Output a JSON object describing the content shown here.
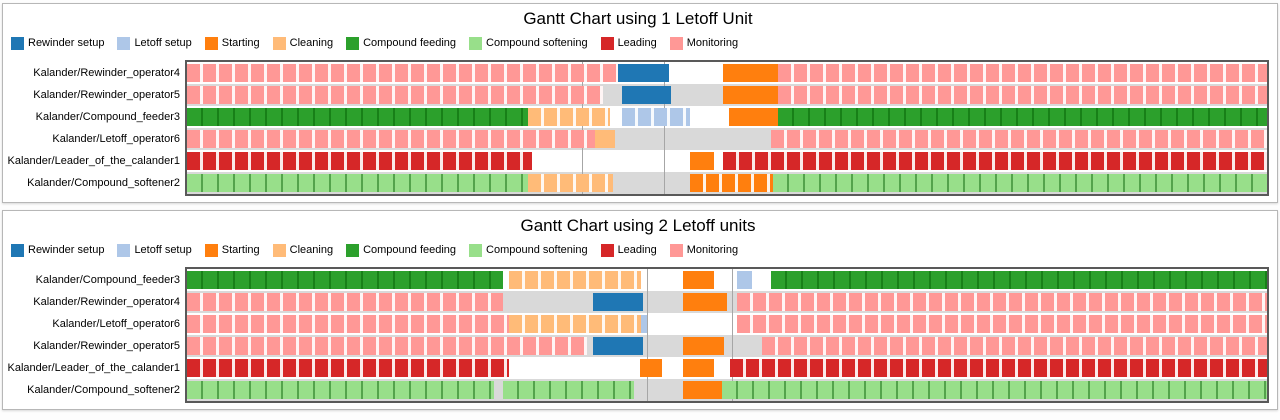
{
  "activity_colors": {
    "Rewinder setup": "#1f77b4",
    "Letoff setup": "#aec7e8",
    "Starting": "#ff7f0e",
    "Cleaning": "#ffbb78",
    "Compound feeding": "#2ca02c",
    "Compound softening": "#98df8a",
    "Leading": "#d62728",
    "Monitoring": "#ff9896"
  },
  "row_colors": {
    "even": "#ffffff",
    "odd": "#d9d9d9"
  },
  "chart_data": [
    {
      "type": "gantt",
      "title": "Gantt Chart using 1 Letoff Unit",
      "legend": [
        "Rewinder setup",
        "Letoff setup",
        "Starting",
        "Cleaning",
        "Compound feeding",
        "Compound softening",
        "Leading",
        "Monitoring"
      ],
      "legend_position": "top-left",
      "xlim": [
        0,
        100
      ],
      "gridlines_x": [
        36.6,
        44.2
      ],
      "rows": [
        {
          "label": "Kalander/Rewinder_operator4",
          "segments": [
            [
              "Monitoring",
              0,
              39.9
            ],
            [
              "Rewinder setup",
              39.9,
              44.6
            ],
            [
              "Starting",
              49.6,
              54.7
            ],
            [
              "Monitoring",
              54.7,
              100
            ]
          ]
        },
        {
          "label": "Kalander/Rewinder_operator5",
          "segments": [
            [
              "Monitoring",
              0,
              38.5
            ],
            [
              "Rewinder setup",
              40.3,
              44.8
            ],
            [
              "Starting",
              49.6,
              54.7
            ],
            [
              "Monitoring",
              54.7,
              100
            ]
          ]
        },
        {
          "label": "Kalander/Compound_feeder3",
          "segments": [
            [
              "Compound feeding",
              0,
              31.6
            ],
            [
              "Cleaning",
              31.6,
              39.2
            ],
            [
              "Letoff setup",
              40.3,
              46.6
            ],
            [
              "Starting",
              50.2,
              54.7
            ],
            [
              "Compound feeding",
              54.7,
              100
            ]
          ]
        },
        {
          "label": "Kalander/Letoff_operator6",
          "segments": [
            [
              "Monitoring",
              0,
              37.8
            ],
            [
              "Cleaning",
              37.8,
              39.6
            ],
            [
              "Monitoring",
              54.1,
              100
            ]
          ]
        },
        {
          "label": "Kalander/Leader_of_the_calander1",
          "segments": [
            [
              "Leading",
              0,
              31.9
            ],
            [
              "Starting",
              46.6,
              48.8
            ],
            [
              "Leading",
              49.6,
              100
            ]
          ]
        },
        {
          "label": "Kalander/Compound_softener2",
          "segments": [
            [
              "Compound softening",
              0,
              31.6
            ],
            [
              "Cleaning",
              31.6,
              39.4
            ],
            [
              "Starting",
              46.6,
              54.3
            ],
            [
              "Compound softening",
              54.3,
              100
            ]
          ]
        }
      ]
    },
    {
      "type": "gantt",
      "title": "Gantt Chart using 2 Letoff units",
      "legend": [
        "Rewinder setup",
        "Letoff setup",
        "Starting",
        "Cleaning",
        "Compound feeding",
        "Compound softening",
        "Leading",
        "Monitoring"
      ],
      "legend_position": "top-left",
      "xlim": [
        0,
        100
      ],
      "gridlines_x": [
        42.6,
        50.5
      ],
      "rows": [
        {
          "label": "Kalander/Compound_feeder3",
          "segments": [
            [
              "Compound feeding",
              0,
              29.3
            ],
            [
              "Cleaning",
              29.8,
              42.0
            ],
            [
              "Starting",
              45.9,
              48.8
            ],
            [
              "Letoff setup",
              50.9,
              52.3
            ],
            [
              "Compound feeding",
              54.1,
              100
            ]
          ]
        },
        {
          "label": "Kalander/Rewinder_operator4",
          "segments": [
            [
              "Monitoring",
              0,
              29.3
            ],
            [
              "Rewinder setup",
              37.6,
              42.2
            ],
            [
              "Starting",
              45.9,
              50.0
            ],
            [
              "Monitoring",
              50.9,
              100
            ]
          ]
        },
        {
          "label": "Kalander/Letoff_operator6",
          "segments": [
            [
              "Monitoring",
              0,
              29.8
            ],
            [
              "Cleaning",
              29.8,
              42.0
            ],
            [
              "Letoff setup",
              42.0,
              42.6
            ],
            [
              "Monitoring",
              50.9,
              100
            ]
          ]
        },
        {
          "label": "Kalander/Rewinder_operator5",
          "segments": [
            [
              "Monitoring",
              0,
              37.0
            ],
            [
              "Rewinder setup",
              37.6,
              42.2
            ],
            [
              "Starting",
              45.9,
              49.7
            ],
            [
              "Monitoring",
              53.2,
              100
            ]
          ]
        },
        {
          "label": "Kalander/Leader_of_the_calander1",
          "segments": [
            [
              "Leading",
              0,
              29.8
            ],
            [
              "Starting",
              41.9,
              44.0
            ],
            [
              "Starting",
              45.9,
              48.8
            ],
            [
              "Leading",
              50.3,
              100
            ]
          ]
        },
        {
          "label": "Kalander/Compound_softener2",
          "segments": [
            [
              "Compound softening",
              0,
              28.4
            ],
            [
              "Compound softening",
              29.3,
              41.4
            ],
            [
              "Starting",
              45.9,
              49.5
            ],
            [
              "Compound softening",
              49.5,
              100
            ]
          ]
        }
      ]
    }
  ]
}
